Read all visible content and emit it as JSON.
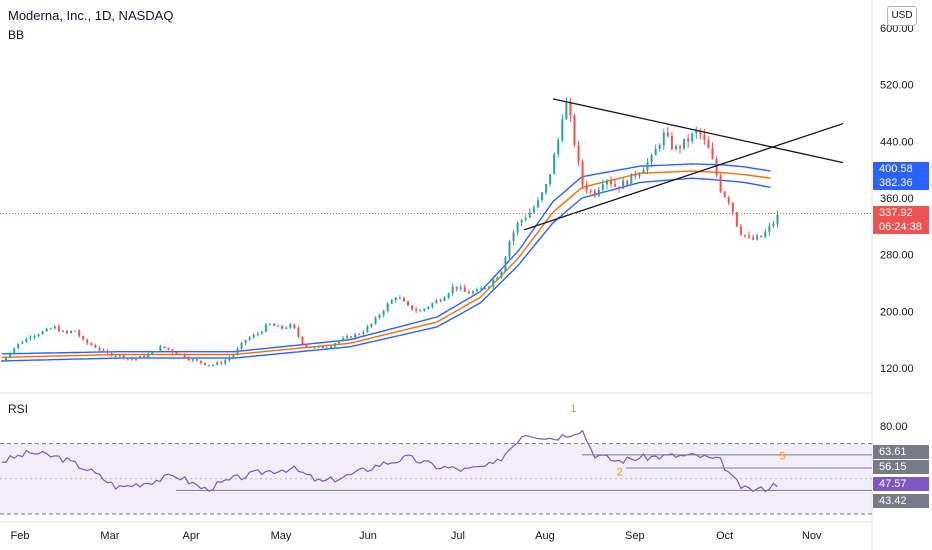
{
  "header": {
    "symbol_line": "Moderna, Inc., 1D, NASDAQ",
    "indicator": "BB",
    "currency": "USD"
  },
  "rsi_panel": {
    "label": "RSI"
  },
  "colors": {
    "up": "#26a69a",
    "down": "#ef5350",
    "bb_basis": "#ff6d00",
    "bb_band": "#2962ff",
    "rsi_line": "#7e57c2",
    "rsi_fill": "#ede7f6",
    "trendline": "#131722",
    "annotation": "#ff9800"
  },
  "price_tags": [
    {
      "label": "400.58",
      "color": "#2962ff"
    },
    {
      "label": "382.36",
      "color": "#2962ff"
    },
    {
      "label": "337.92",
      "color": "#ef5350"
    },
    {
      "label": "06:24:38",
      "color": "#ef5350"
    }
  ],
  "rsi_tags": [
    {
      "label": "63.61",
      "color": "#787b86"
    },
    {
      "label": "56.15",
      "color": "#787b86"
    },
    {
      "label": "47.57",
      "color": "#7e57c2"
    },
    {
      "label": "43.42",
      "color": "#787b86"
    }
  ],
  "chart_data": [
    {
      "type": "candlestick",
      "title": "Moderna, Inc., 1D, NASDAQ",
      "y_ticks": [
        "600.00",
        "520.00",
        "440.00",
        "360.00",
        "280.00",
        "200.00",
        "120.00"
      ],
      "x_ticks": [
        "Feb",
        "Mar",
        "Apr",
        "May",
        "Jun",
        "Jul",
        "Aug",
        "Sep",
        "Oct",
        "Nov"
      ],
      "last_price": 337.92,
      "x_range_days": [
        0,
        290
      ],
      "ylim": [
        95,
        615
      ],
      "close_series": [
        [
          0,
          130
        ],
        [
          5,
          152
        ],
        [
          10,
          166
        ],
        [
          15,
          172
        ],
        [
          18,
          178
        ],
        [
          22,
          168
        ],
        [
          25,
          174
        ],
        [
          28,
          158
        ],
        [
          32,
          150
        ],
        [
          36,
          140
        ],
        [
          40,
          138
        ],
        [
          45,
          132
        ],
        [
          50,
          138
        ],
        [
          55,
          150
        ],
        [
          60,
          142
        ],
        [
          65,
          132
        ],
        [
          70,
          126
        ],
        [
          72,
          124
        ],
        [
          76,
          128
        ],
        [
          80,
          140
        ],
        [
          84,
          160
        ],
        [
          88,
          168
        ],
        [
          92,
          182
        ],
        [
          96,
          176
        ],
        [
          100,
          180
        ],
        [
          104,
          152
        ],
        [
          108,
          148
        ],
        [
          112,
          150
        ],
        [
          116,
          158
        ],
        [
          120,
          164
        ],
        [
          124,
          170
        ],
        [
          128,
          184
        ],
        [
          132,
          205
        ],
        [
          136,
          222
        ],
        [
          140,
          206
        ],
        [
          144,
          200
        ],
        [
          148,
          210
        ],
        [
          152,
          220
        ],
        [
          156,
          236
        ],
        [
          160,
          226
        ],
        [
          164,
          228
        ],
        [
          168,
          238
        ],
        [
          172,
          256
        ],
        [
          175,
          300
        ],
        [
          178,
          325
        ],
        [
          182,
          340
        ],
        [
          185,
          355
        ],
        [
          188,
          380
        ],
        [
          192,
          445
        ],
        [
          194,
          500
        ],
        [
          196,
          470
        ],
        [
          200,
          380
        ],
        [
          204,
          365
        ],
        [
          208,
          390
        ],
        [
          212,
          375
        ],
        [
          216,
          385
        ],
        [
          220,
          400
        ],
        [
          224,
          415
        ],
        [
          228,
          450
        ],
        [
          232,
          428
        ],
        [
          236,
          440
        ],
        [
          240,
          455
        ],
        [
          244,
          425
        ],
        [
          246,
          398
        ],
        [
          248,
          370
        ],
        [
          251,
          355
        ],
        [
          254,
          315
        ],
        [
          258,
          300
        ],
        [
          262,
          305
        ],
        [
          266,
          325
        ],
        [
          268,
          337.92
        ]
      ],
      "bollinger": {
        "upper": [
          [
            0,
            140
          ],
          [
            40,
            143
          ],
          [
            80,
            143
          ],
          [
            120,
            160
          ],
          [
            150,
            192
          ],
          [
            165,
            228
          ],
          [
            178,
            285
          ],
          [
            190,
            355
          ],
          [
            200,
            390
          ],
          [
            220,
            405
          ],
          [
            238,
            408
          ],
          [
            248,
            407
          ],
          [
            256,
            404
          ],
          [
            265,
            398
          ]
        ],
        "basis": [
          [
            0,
            135
          ],
          [
            40,
            139
          ],
          [
            80,
            139
          ],
          [
            120,
            155
          ],
          [
            150,
            185
          ],
          [
            165,
            220
          ],
          [
            178,
            275
          ],
          [
            190,
            340
          ],
          [
            200,
            375
          ],
          [
            220,
            395
          ],
          [
            238,
            398
          ],
          [
            248,
            396
          ],
          [
            256,
            393
          ],
          [
            265,
            388
          ]
        ],
        "lower": [
          [
            0,
            130
          ],
          [
            40,
            134
          ],
          [
            80,
            134
          ],
          [
            120,
            150
          ],
          [
            150,
            178
          ],
          [
            165,
            212
          ],
          [
            178,
            265
          ],
          [
            190,
            325
          ],
          [
            200,
            360
          ],
          [
            220,
            382
          ],
          [
            238,
            388
          ],
          [
            248,
            385
          ],
          [
            256,
            382
          ],
          [
            265,
            375
          ]
        ]
      },
      "trendlines": [
        {
          "from": [
            190,
            500
          ],
          "to": [
            290,
            410
          ]
        },
        {
          "from": [
            180,
            315
          ],
          "to": [
            290,
            465
          ]
        }
      ]
    },
    {
      "type": "line",
      "title": "RSI",
      "y_ticks": [
        "80.00"
      ],
      "ylim": [
        27,
        95
      ],
      "levels": [
        70,
        30
      ],
      "series": [
        {
          "values": [
            [
              0,
              60
            ],
            [
              10,
              65
            ],
            [
              20,
              62
            ],
            [
              30,
              55
            ],
            [
              40,
              45
            ],
            [
              50,
              48
            ],
            [
              60,
              52
            ],
            [
              70,
              44
            ],
            [
              80,
              50
            ],
            [
              90,
              54
            ],
            [
              100,
              56
            ],
            [
              110,
              48
            ],
            [
              120,
              52
            ],
            [
              130,
              58
            ],
            [
              140,
              62
            ],
            [
              150,
              57
            ],
            [
              160,
              55
            ],
            [
              170,
              58
            ],
            [
              180,
              76
            ],
            [
              190,
              73
            ],
            [
              200,
              78
            ],
            [
              204,
              64
            ],
            [
              212,
              60
            ],
            [
              220,
              62
            ],
            [
              230,
              63
            ],
            [
              240,
              63
            ],
            [
              248,
              60
            ],
            [
              252,
              50
            ],
            [
              256,
              44
            ],
            [
              262,
              44
            ],
            [
              268,
              47.57
            ]
          ]
        }
      ],
      "horizontal_levels": [
        63.61,
        56.15,
        43.42
      ],
      "annotations": [
        "1",
        "2",
        "5"
      ]
    }
  ]
}
